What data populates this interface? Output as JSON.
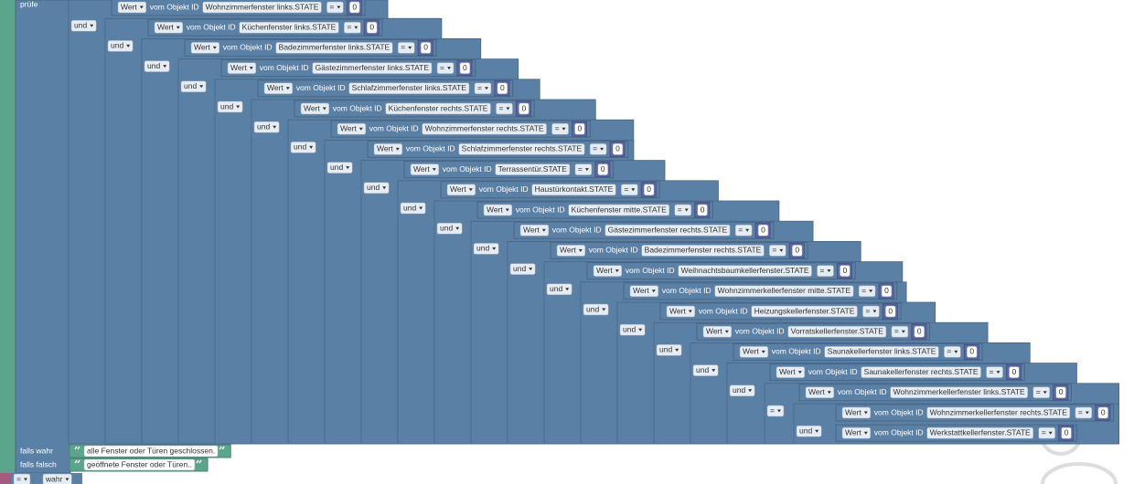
{
  "labels": {
    "check": "prüfe",
    "if_true": "falls wahr",
    "if_false": "falls falsch"
  },
  "operators": [
    "und",
    "und",
    "und",
    "und",
    "und",
    "und",
    "und",
    "und",
    "und",
    "und",
    "und",
    "und",
    "und",
    "und",
    "und",
    "und",
    "und",
    "und",
    "und",
    "=",
    "und"
  ],
  "conditions": [
    {
      "field": "Wert",
      "source": "vom Objekt ID",
      "object_id": "Wohnzimmerfenster links.STATE",
      "comparison": "=",
      "value": 0
    },
    {
      "field": "Wert",
      "source": "vom Objekt ID",
      "object_id": "Küchenfenster links.STATE",
      "comparison": "=",
      "value": 0
    },
    {
      "field": "Wert",
      "source": "vom Objekt ID",
      "object_id": "Badezimmerfenster links.STATE",
      "comparison": "=",
      "value": 0
    },
    {
      "field": "Wert",
      "source": "vom Objekt ID",
      "object_id": "Gästezimmerfenster links.STATE",
      "comparison": "=",
      "value": 0
    },
    {
      "field": "Wert",
      "source": "vom Objekt ID",
      "object_id": "Schlafzimmerfenster links.STATE",
      "comparison": "=",
      "value": 0
    },
    {
      "field": "Wert",
      "source": "vom Objekt ID",
      "object_id": "Küchenfenster rechts.STATE",
      "comparison": "=",
      "value": 0
    },
    {
      "field": "Wert",
      "source": "vom Objekt ID",
      "object_id": "Wohnzimmerfenster rechts.STATE",
      "comparison": "=",
      "value": 0
    },
    {
      "field": "Wert",
      "source": "vom Objekt ID",
      "object_id": "Schlafzimmerfenster rechts.STATE",
      "comparison": "=",
      "value": 0
    },
    {
      "field": "Wert",
      "source": "vom Objekt ID",
      "object_id": "Terrassentür.STATE",
      "comparison": "=",
      "value": 0
    },
    {
      "field": "Wert",
      "source": "vom Objekt ID",
      "object_id": "Haustürkontakt.STATE",
      "comparison": "=",
      "value": 0
    },
    {
      "field": "Wert",
      "source": "vom Objekt ID",
      "object_id": "Küchenfenster mitte.STATE",
      "comparison": "=",
      "value": 0
    },
    {
      "field": "Wert",
      "source": "vom Objekt ID",
      "object_id": "Gästezimmerfenster rechts.STATE",
      "comparison": "=",
      "value": 0
    },
    {
      "field": "Wert",
      "source": "vom Objekt ID",
      "object_id": "Badezimmerfenster rechts.STATE",
      "comparison": "=",
      "value": 0
    },
    {
      "field": "Wert",
      "source": "vom Objekt ID",
      "object_id": "Weihnachtsbaumkellerfenster.STATE",
      "comparison": "=",
      "value": 0
    },
    {
      "field": "Wert",
      "source": "vom Objekt ID",
      "object_id": "Wohnzimmerkellerfenster mitte.STATE",
      "comparison": "=",
      "value": 0
    },
    {
      "field": "Wert",
      "source": "vom Objekt ID",
      "object_id": "Heizungskellerfenster.STATE",
      "comparison": "=",
      "value": 0
    },
    {
      "field": "Wert",
      "source": "vom Objekt ID",
      "object_id": "Vorratskellerfenster.STATE",
      "comparison": "=",
      "value": 0
    },
    {
      "field": "Wert",
      "source": "vom Objekt ID",
      "object_id": "Saunakellerfenster links.STATE",
      "comparison": "=",
      "value": 0
    },
    {
      "field": "Wert",
      "source": "vom Objekt ID",
      "object_id": "Saunakellerfenster rechts.STATE",
      "comparison": "=",
      "value": 0
    },
    {
      "field": "Wert",
      "source": "vom Objekt ID",
      "object_id": "Wohnzimmerkellerfenster links.STATE",
      "comparison": "=",
      "value": 0
    },
    {
      "field": "Wert",
      "source": "vom Objekt ID",
      "object_id": "Wohnzimmerkellerfenster rechts.STATE",
      "comparison": "=",
      "value": 0
    },
    {
      "field": "Wert",
      "source": "vom Objekt ID",
      "object_id": "Werkstattkellerfenster.STATE",
      "comparison": "=",
      "value": 0
    }
  ],
  "strings": {
    "if_true": "alle Fenster oder Türen geschlossen.",
    "if_false": "geöffnete Fenster oder Türen.."
  },
  "bottom": {
    "operator": "=",
    "value": "wahr"
  }
}
